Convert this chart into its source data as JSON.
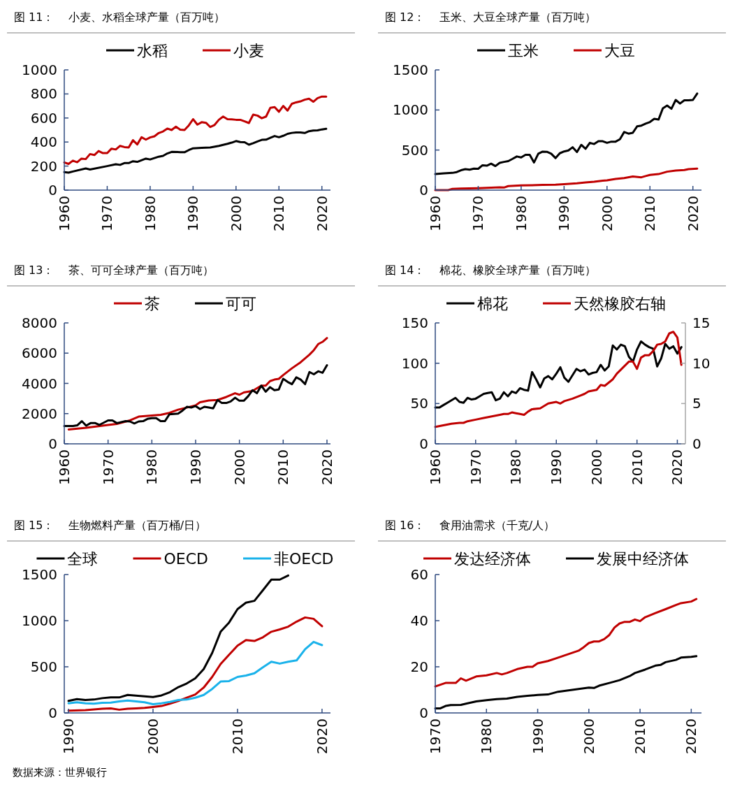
{
  "chart_data": [
    {
      "type": "line",
      "title": "图 11：    小麦、水稻全球产量（百万吨）",
      "legend": "top",
      "xlim": [
        1960,
        2022
      ],
      "xticks": [
        1960,
        1970,
        1980,
        1990,
        2000,
        2010,
        2020
      ],
      "ylim": [
        0,
        1000
      ],
      "yticks": [
        0,
        200,
        400,
        600,
        800,
        1000
      ],
      "series": [
        {
          "name": "水稻",
          "color": "#000000",
          "x": [
            1960,
            1961,
            1962,
            1965,
            1966,
            1970,
            1972,
            1973,
            1974,
            1975,
            1976,
            1977,
            1979,
            1980,
            1982,
            1983,
            1984,
            1985,
            1987,
            1988,
            1989,
            1990,
            1992,
            1994,
            1996,
            1998,
            1999,
            2000,
            2001,
            2002,
            2003,
            2004,
            2005,
            2006,
            2007,
            2008,
            2009,
            2010,
            2011,
            2012,
            2013,
            2014,
            2015,
            2016,
            2017,
            2018,
            2019,
            2020,
            2021
          ],
          "values": [
            150,
            145,
            155,
            180,
            172,
            200,
            215,
            210,
            225,
            225,
            240,
            235,
            262,
            255,
            278,
            285,
            305,
            318,
            316,
            315,
            333,
            348,
            352,
            355,
            368,
            385,
            395,
            408,
            400,
            398,
            378,
            390,
            405,
            418,
            420,
            435,
            450,
            440,
            452,
            468,
            476,
            480,
            480,
            475,
            490,
            495,
            497,
            505,
            510
          ]
        },
        {
          "name": "小麦",
          "color": "#c00000",
          "x": [
            1960,
            1961,
            1962,
            1963,
            1964,
            1965,
            1966,
            1967,
            1968,
            1969,
            1970,
            1971,
            1972,
            1973,
            1974,
            1975,
            1976,
            1977,
            1978,
            1979,
            1980,
            1981,
            1982,
            1983,
            1984,
            1985,
            1986,
            1987,
            1988,
            1989,
            1990,
            1991,
            1992,
            1993,
            1994,
            1995,
            1996,
            1997,
            1998,
            1999,
            2000,
            2001,
            2002,
            2003,
            2004,
            2005,
            2006,
            2007,
            2008,
            2009,
            2010,
            2011,
            2012,
            2013,
            2014,
            2015,
            2016,
            2017,
            2018,
            2019,
            2020,
            2021
          ],
          "values": [
            230,
            218,
            245,
            232,
            262,
            258,
            300,
            292,
            325,
            308,
            308,
            345,
            338,
            368,
            358,
            355,
            415,
            380,
            440,
            420,
            438,
            448,
            475,
            488,
            512,
            500,
            528,
            503,
            500,
            538,
            590,
            545,
            565,
            560,
            525,
            542,
            585,
            612,
            590,
            588,
            585,
            585,
            572,
            558,
            628,
            620,
            598,
            612,
            685,
            690,
            652,
            700,
            662,
            718,
            730,
            738,
            752,
            760,
            735,
            765,
            778,
            778
          ]
        }
      ]
    },
    {
      "type": "line",
      "title": "图 12：    玉米、大豆全球产量（百万吨）",
      "legend": "top",
      "xlim": [
        1960,
        2022
      ],
      "xticks": [
        1960,
        1970,
        1980,
        1990,
        2000,
        2010,
        2020
      ],
      "ylim": [
        0,
        1500
      ],
      "yticks": [
        0,
        500,
        1000,
        1500
      ],
      "series": [
        {
          "name": "玉米",
          "color": "#000000",
          "x": [
            1960,
            1962,
            1964,
            1965,
            1966,
            1967,
            1968,
            1969,
            1970,
            1971,
            1972,
            1973,
            1974,
            1975,
            1976,
            1977,
            1978,
            1979,
            1980,
            1981,
            1982,
            1983,
            1984,
            1985,
            1986,
            1987,
            1988,
            1989,
            1990,
            1991,
            1992,
            1993,
            1994,
            1995,
            1996,
            1997,
            1998,
            1999,
            2000,
            2001,
            2002,
            2003,
            2004,
            2005,
            2006,
            2007,
            2008,
            2009,
            2010,
            2011,
            2012,
            2013,
            2014,
            2015,
            2016,
            2017,
            2018,
            2019,
            2020,
            2021
          ],
          "values": [
            200,
            210,
            215,
            225,
            248,
            262,
            255,
            268,
            266,
            310,
            305,
            330,
            300,
            340,
            352,
            362,
            390,
            420,
            408,
            440,
            440,
            345,
            455,
            480,
            478,
            455,
            400,
            460,
            482,
            495,
            535,
            475,
            565,
            515,
            590,
            575,
            610,
            610,
            590,
            605,
            605,
            635,
            725,
            705,
            715,
            795,
            805,
            830,
            850,
            890,
            880,
            1020,
            1055,
            1015,
            1125,
            1080,
            1120,
            1120,
            1125,
            1205
          ]
        },
        {
          "name": "大豆",
          "color": "#c00000",
          "x": [
            1960,
            1963,
            1964,
            1966,
            1970,
            1972,
            1975,
            1976,
            1977,
            1980,
            1985,
            1988,
            1990,
            1993,
            1995,
            1997,
            1999,
            2000,
            2002,
            2004,
            2006,
            2008,
            2009,
            2010,
            2012,
            2014,
            2016,
            2018,
            2019,
            2021
          ],
          "values": [
            0,
            0,
            15,
            20,
            25,
            28,
            35,
            32,
            50,
            58,
            65,
            68,
            75,
            85,
            95,
            105,
            118,
            122,
            140,
            150,
            170,
            160,
            175,
            190,
            200,
            230,
            245,
            250,
            262,
            268
          ]
        }
      ]
    },
    {
      "type": "line",
      "title": "图 13：    茶、可可全球产量（百万吨）",
      "legend": "top",
      "xlim": [
        1960,
        2020.8
      ],
      "xticks": [
        1960,
        1970,
        1980,
        1990,
        2000,
        2010,
        2020
      ],
      "ylim": [
        0,
        8000
      ],
      "yticks": [
        0,
        2000,
        4000,
        6000,
        8000
      ],
      "series": [
        {
          "name": "茶",
          "color": "#c00000",
          "x": [
            1961,
            1965,
            1970,
            1972,
            1975,
            1977,
            1980,
            1982,
            1984,
            1986,
            1988,
            1990,
            1991,
            1993,
            1995,
            1997,
            1999,
            2000,
            2001,
            2003,
            2005,
            2006,
            2007,
            2008,
            2009,
            2010,
            2012,
            2014,
            2016,
            2017,
            2018,
            2019,
            2020
          ],
          "values": [
            950,
            1060,
            1250,
            1320,
            1550,
            1800,
            1870,
            1920,
            2050,
            2260,
            2400,
            2550,
            2750,
            2870,
            2900,
            3100,
            3350,
            3250,
            3400,
            3500,
            3850,
            3850,
            4150,
            4250,
            4300,
            4550,
            5000,
            5400,
            5900,
            6200,
            6600,
            6750,
            7000
          ]
        },
        {
          "name": "可可",
          "color": "#000000",
          "x": [
            1960,
            1962,
            1963,
            1964,
            1965,
            1966,
            1967,
            1968,
            1969,
            1970,
            1971,
            1972,
            1974,
            1975,
            1976,
            1977,
            1978,
            1979,
            1980,
            1981,
            1982,
            1983,
            1984,
            1986,
            1987,
            1988,
            1989,
            1990,
            1991,
            1992,
            1993,
            1994,
            1995,
            1996,
            1997,
            1998,
            1999,
            2000,
            2001,
            2002,
            2003,
            2004,
            2005,
            2006,
            2007,
            2008,
            2009,
            2010,
            2011,
            2012,
            2013,
            2014,
            2015,
            2016,
            2017,
            2018,
            2019,
            2020
          ],
          "values": [
            1180,
            1180,
            1230,
            1500,
            1200,
            1370,
            1380,
            1250,
            1400,
            1550,
            1550,
            1370,
            1500,
            1480,
            1350,
            1480,
            1500,
            1650,
            1700,
            1700,
            1500,
            1500,
            1950,
            2000,
            2200,
            2450,
            2400,
            2500,
            2300,
            2450,
            2400,
            2350,
            2900,
            2700,
            2700,
            2800,
            3050,
            2850,
            2850,
            3150,
            3550,
            3350,
            3850,
            3450,
            3750,
            3550,
            3600,
            4300,
            4100,
            3950,
            4400,
            4250,
            3950,
            4750,
            4600,
            4800,
            4700,
            5200
          ]
        }
      ]
    },
    {
      "type": "line",
      "title": "图 14：    棉花、橡胶全球产量（百万吨）",
      "legend": "top",
      "xlim": [
        1960,
        2022
      ],
      "xticks": [
        1960,
        1970,
        1980,
        1990,
        2000,
        2010,
        2020
      ],
      "ylim": [
        0,
        150
      ],
      "yticks": [
        0,
        50,
        100,
        150
      ],
      "y2lim": [
        0,
        15
      ],
      "y2ticks": [
        0,
        5,
        10,
        15
      ],
      "series": [
        {
          "name": "棉花",
          "color": "#000000",
          "x": [
            1960,
            1961,
            1962,
            1963,
            1964,
            1965,
            1966,
            1967,
            1968,
            1969,
            1970,
            1971,
            1972,
            1973,
            1974,
            1975,
            1976,
            1977,
            1978,
            1979,
            1980,
            1981,
            1982,
            1983,
            1984,
            1985,
            1986,
            1987,
            1988,
            1989,
            1990,
            1991,
            1992,
            1993,
            1994,
            1995,
            1996,
            1997,
            1998,
            1999,
            2000,
            2001,
            2002,
            2003,
            2004,
            2005,
            2006,
            2007,
            2008,
            2009,
            2010,
            2011,
            2012,
            2013,
            2014,
            2015,
            2016,
            2017,
            2018,
            2019,
            2020,
            2021
          ],
          "values": [
            45,
            45,
            48,
            51,
            54,
            57,
            52,
            51,
            57,
            55,
            56,
            59,
            62,
            63,
            64,
            54,
            56,
            64,
            59,
            65,
            63,
            69,
            67,
            66,
            89,
            80,
            70,
            81,
            84,
            80,
            87,
            95,
            82,
            77,
            85,
            93,
            90,
            92,
            86,
            88,
            89,
            98,
            91,
            96,
            122,
            117,
            123,
            121,
            108,
            102,
            117,
            127,
            123,
            120,
            118,
            96,
            106,
            124,
            118,
            121,
            112,
            120
          ]
        },
        {
          "name": "天然橡胶右轴",
          "color": "#c00000",
          "axis": "y2",
          "x": [
            1960,
            1962,
            1964,
            1966,
            1967,
            1968,
            1970,
            1972,
            1974,
            1976,
            1977,
            1978,
            1979,
            1980,
            1981,
            1982,
            1983,
            1984,
            1986,
            1987,
            1988,
            1990,
            1991,
            1992,
            1994,
            1996,
            1997,
            1998,
            2000,
            2001,
            2002,
            2004,
            2005,
            2007,
            2008,
            2009,
            2010,
            2011,
            2012,
            2013,
            2014,
            2015,
            2016,
            2017,
            2018,
            2019,
            2020,
            2021
          ],
          "values": [
            2.1,
            2.3,
            2.5,
            2.6,
            2.6,
            2.8,
            3.0,
            3.2,
            3.4,
            3.6,
            3.7,
            3.7,
            3.9,
            3.8,
            3.7,
            3.6,
            4.0,
            4.3,
            4.4,
            4.7,
            5.0,
            5.2,
            5.0,
            5.3,
            5.6,
            6.0,
            6.2,
            6.5,
            6.7,
            7.3,
            7.2,
            8.0,
            8.7,
            9.7,
            10.2,
            10.2,
            9.3,
            10.7,
            11.0,
            11.0,
            11.5,
            12.3,
            12.4,
            12.7,
            13.7,
            13.9,
            13.2,
            9.8
          ]
        }
      ]
    },
    {
      "type": "line",
      "title": "图 15：    生物燃料产量（百万桶/日）",
      "legend": "top",
      "xlim": [
        1989.5,
        2021
      ],
      "xticks": [
        1990,
        2000,
        2010,
        2020
      ],
      "ylim": [
        0,
        1500
      ],
      "yticks": [
        0,
        500,
        1000,
        1500
      ],
      "annotations": [
        "数据来源：世界银行"
      ],
      "series": [
        {
          "name": "全球",
          "color": "#000000",
          "x": [
            1990,
            1991,
            1992,
            1993,
            1994,
            1995,
            1996,
            1997,
            1998,
            1999,
            2000,
            2001,
            2002,
            2003,
            2004,
            2005,
            2006,
            2007,
            2008,
            2009,
            2010,
            2011,
            2012,
            2013,
            2014,
            2015,
            2016
          ],
          "values": [
            130,
            150,
            140,
            145,
            160,
            168,
            168,
            195,
            188,
            180,
            172,
            190,
            225,
            280,
            320,
            375,
            475,
            650,
            880,
            980,
            1125,
            1195,
            1215,
            1330,
            1445,
            1445,
            1490
          ]
        },
        {
          "name": "OECD",
          "color": "#c00000",
          "x": [
            1990,
            1992,
            1994,
            1995,
            1996,
            1997,
            1998,
            1999,
            2000,
            2001,
            2002,
            2003,
            2004,
            2005,
            2006,
            2007,
            2008,
            2009,
            2010,
            2011,
            2012,
            2013,
            2014,
            2015,
            2016,
            2017,
            2018,
            2019,
            2020
          ],
          "values": [
            25,
            30,
            45,
            50,
            35,
            45,
            50,
            55,
            65,
            75,
            100,
            130,
            165,
            200,
            275,
            390,
            530,
            630,
            730,
            790,
            780,
            820,
            880,
            905,
            935,
            990,
            1035,
            1020,
            940
          ]
        },
        {
          "name": "非OECD",
          "color": "#1ab2ea",
          "x": [
            1990,
            1991,
            1992,
            1993,
            1994,
            1995,
            1996,
            1997,
            1998,
            1999,
            2000,
            2001,
            2002,
            2003,
            2004,
            2005,
            2006,
            2007,
            2008,
            2009,
            2010,
            2011,
            2012,
            2013,
            2014,
            2015,
            2016,
            2017,
            2018,
            2019,
            2020
          ],
          "values": [
            105,
            115,
            105,
            100,
            110,
            112,
            125,
            135,
            125,
            115,
            95,
            105,
            120,
            140,
            145,
            165,
            195,
            260,
            340,
            345,
            390,
            405,
            430,
            495,
            555,
            535,
            555,
            570,
            690,
            770,
            735
          ]
        }
      ]
    },
    {
      "type": "line",
      "title": "图 16：    食用油需求（千克/人）",
      "legend": "top",
      "xlim": [
        1970,
        2022
      ],
      "xticks": [
        1970,
        1980,
        1990,
        2000,
        2010,
        2020
      ],
      "ylim": [
        0,
        60
      ],
      "yticks": [
        0,
        20,
        40,
        60
      ],
      "series": [
        {
          "name": "发达经济体",
          "color": "#c00000",
          "x": [
            1970,
            1972,
            1974,
            1975,
            1976,
            1978,
            1980,
            1982,
            1983,
            1984,
            1986,
            1988,
            1989,
            1990,
            1992,
            1994,
            1996,
            1998,
            1999,
            2000,
            2001,
            2002,
            2003,
            2004,
            2005,
            2006,
            2007,
            2008,
            2009,
            2010,
            2011,
            2013,
            2015,
            2017,
            2018,
            2020,
            2021
          ],
          "values": [
            11.5,
            13,
            13,
            15,
            14,
            15.8,
            16.3,
            17.3,
            16.7,
            17.3,
            19,
            20,
            20,
            21.5,
            22.5,
            24,
            25.5,
            27,
            28.5,
            30.3,
            31,
            31,
            32,
            33.8,
            37,
            38.8,
            39.5,
            39.5,
            40.5,
            39.8,
            41.5,
            43.3,
            45,
            46.8,
            47.6,
            48.3,
            49.4
          ]
        },
        {
          "name": "发展中经济体",
          "color": "#000000",
          "x": [
            1970,
            1971,
            1972,
            1973,
            1975,
            1976,
            1978,
            1980,
            1982,
            1984,
            1986,
            1988,
            1990,
            1992,
            1994,
            1996,
            1998,
            2000,
            2001,
            2002,
            2004,
            2006,
            2008,
            2009,
            2011,
            2013,
            2014,
            2015,
            2017,
            2018,
            2020,
            2021
          ],
          "values": [
            2,
            2,
            3,
            3.4,
            3.5,
            4,
            5,
            5.5,
            6,
            6.2,
            7,
            7.4,
            7.8,
            8,
            9.2,
            9.8,
            10.4,
            11,
            10.8,
            11.8,
            13,
            14.2,
            16,
            17.3,
            18.8,
            20.5,
            20.8,
            22,
            23,
            24,
            24.3,
            24.6
          ]
        }
      ]
    }
  ]
}
